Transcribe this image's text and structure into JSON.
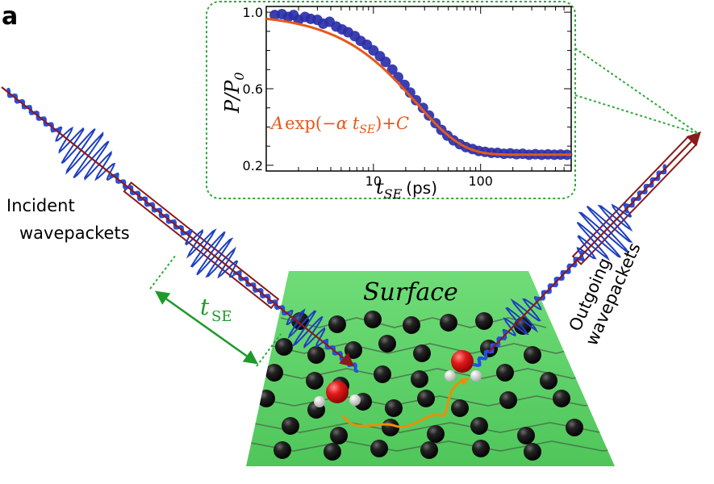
{
  "panel_label": "a",
  "labels": {
    "incident_line1": "Incident",
    "incident_line2": "wavepackets",
    "outgoing_line1": "Outgoing",
    "outgoing_line2": "wavepackets",
    "surface": "Surface",
    "tse_main": "t",
    "tse_sub": "SE"
  },
  "colors": {
    "surface_green": "#5fd36a",
    "tse_green": "#1e9a2a",
    "dashed_green": "#2fa83a",
    "arrow": "#8b1a1a",
    "wave": "#1f3fbf",
    "data_points": "#2a2fa8",
    "fit_line": "#e8571a",
    "atom_carbon": "#1a1a1a",
    "atom_oxygen": "#e01a1a",
    "trajectory": "#e8900a"
  },
  "chart_data": {
    "type": "scatter",
    "ylabel_main": "P",
    "ylabel_sep": "/",
    "ylabel_denom": "P",
    "ylabel_denom_sub": "0",
    "xlabel_main": "t",
    "xlabel_sub": "SE",
    "xlabel_unit": "(ps)",
    "xscale": "log",
    "xlim": [
      1,
      700
    ],
    "ylim": [
      0.17,
      1.03
    ],
    "xticks": [
      10,
      100
    ],
    "xtick_labels": [
      "10",
      "100"
    ],
    "yticks": [
      1.0,
      0.6,
      0.2
    ],
    "ytick_labels": [
      "1.0",
      "0.6",
      "0.2"
    ],
    "fit_label": "A exp(−α t_SE)+C",
    "fit_parts": {
      "A": "A",
      "exp_open": "exp(−",
      "alpha": "α",
      "t": "t",
      "t_sub": "SE",
      "close": ")+",
      "C": "C"
    },
    "fit": {
      "A": 0.74,
      "tau": 25,
      "C": 0.255
    },
    "series": [
      {
        "x": [
          1.2,
          1.4,
          1.6,
          1.8,
          2.0,
          2.3,
          2.6,
          3.0,
          3.4,
          3.9,
          4.5,
          5.1,
          5.8,
          6.7,
          7.6,
          8.7,
          10,
          11.5,
          13,
          15,
          17,
          19.5,
          22,
          25,
          29,
          33,
          38,
          43,
          49,
          56,
          64,
          73,
          84,
          96,
          110,
          126,
          144,
          165,
          189,
          216,
          247,
          283,
          324,
          371,
          425,
          487,
          557,
          640
        ],
        "y": [
          0.985,
          0.99,
          0.975,
          0.985,
          0.96,
          0.975,
          0.965,
          0.96,
          0.94,
          0.95,
          0.925,
          0.91,
          0.895,
          0.875,
          0.85,
          0.83,
          0.8,
          0.77,
          0.74,
          0.7,
          0.66,
          0.62,
          0.58,
          0.54,
          0.5,
          0.46,
          0.42,
          0.385,
          0.355,
          0.33,
          0.31,
          0.295,
          0.285,
          0.275,
          0.27,
          0.265,
          0.265,
          0.26,
          0.262,
          0.258,
          0.26,
          0.255,
          0.258,
          0.255,
          0.257,
          0.255,
          0.256,
          0.255
        ]
      }
    ]
  }
}
